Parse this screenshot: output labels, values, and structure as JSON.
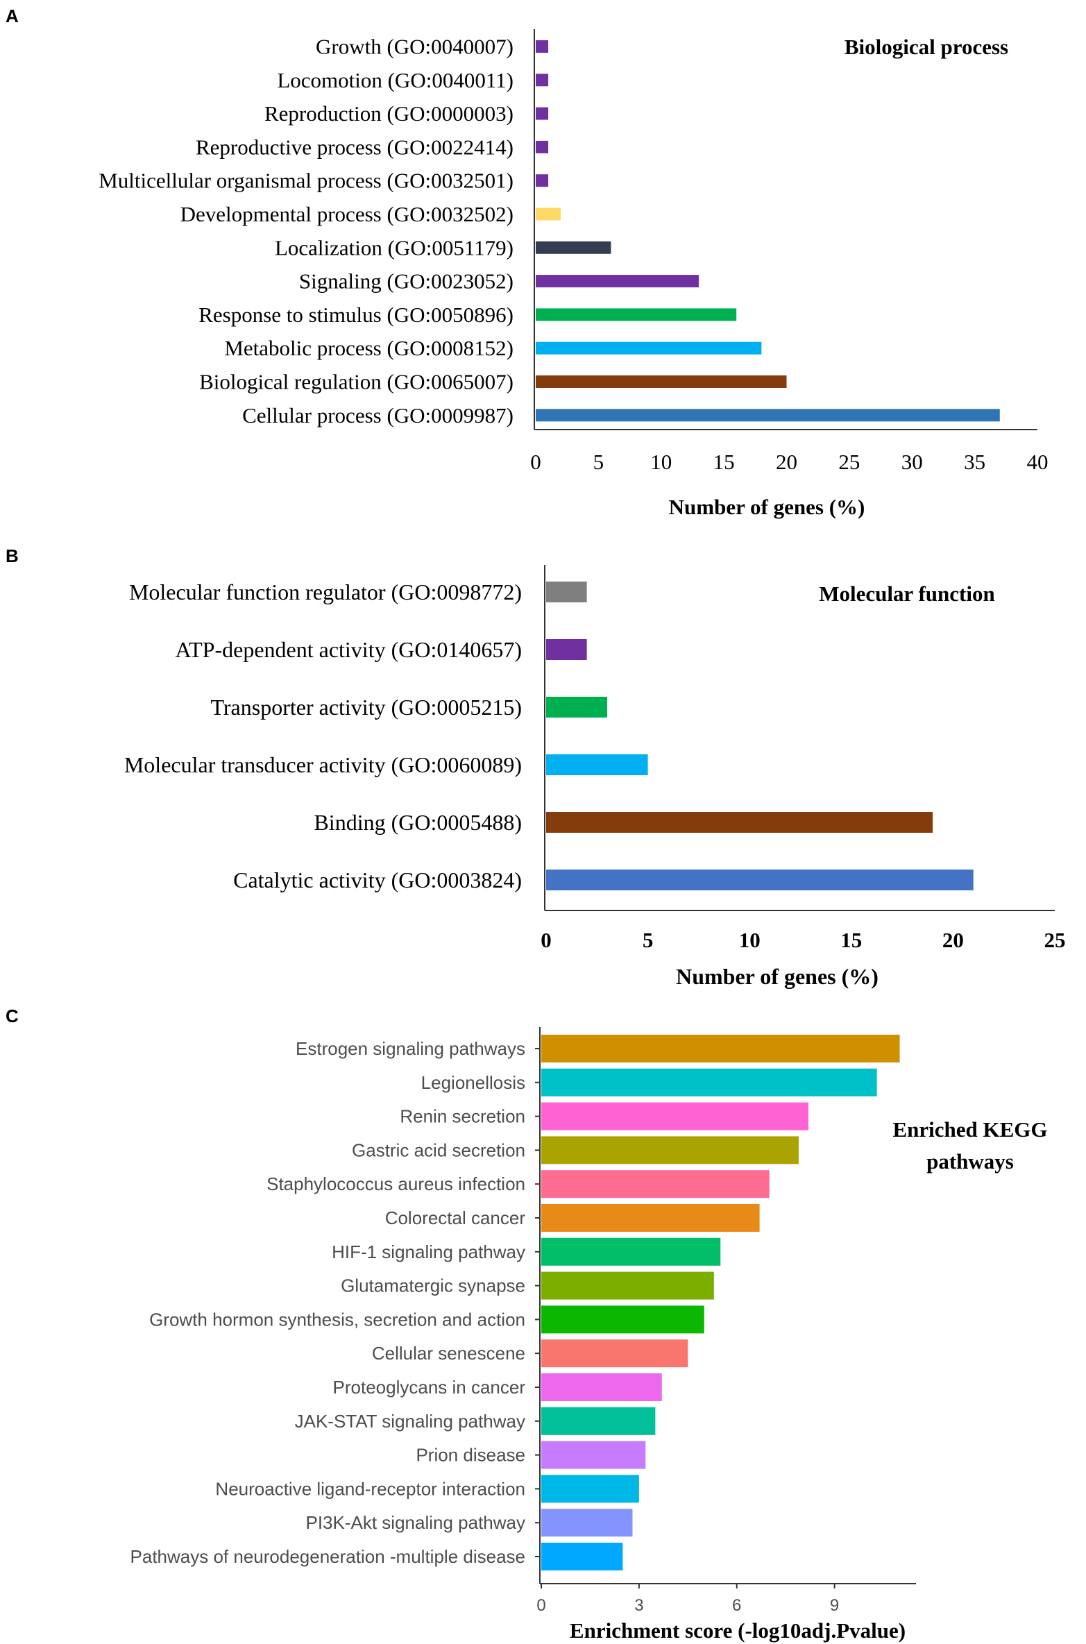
{
  "chart_data": [
    {
      "panel_letter": "A",
      "type": "bar",
      "orientation": "horizontal",
      "title": "Biological process",
      "xlabel": "Number of genes (%)",
      "ylabel": "",
      "xlim": [
        0,
        40
      ],
      "xticks": [
        "0",
        "5",
        "10",
        "15",
        "20",
        "25",
        "30",
        "35",
        "40"
      ],
      "categories": [
        "Growth (GO:0040007)",
        "Locomotion (GO:0040011)",
        "Reproduction (GO:0000003)",
        "Reproductive process (GO:0022414)",
        "Multicellular organismal process (GO:0032501)",
        "Developmental process (GO:0032502)",
        "Localization (GO:0051179)",
        "Signaling (GO:0023052)",
        "Response to stimulus (GO:0050896)",
        "Metabolic process (GO:0008152)",
        "Biological regulation (GO:0065007)",
        "Cellular process (GO:0009987)"
      ],
      "values": [
        1,
        1,
        1,
        1,
        1,
        2,
        6,
        13,
        16,
        18,
        20,
        37
      ],
      "colors": [
        "#7030a0",
        "#7030a0",
        "#7030a0",
        "#7030a0",
        "#7030a0",
        "#ffd966",
        "#333f50",
        "#7030a0",
        "#00b050",
        "#00b0f0",
        "#843c0c",
        "#2e75b6"
      ],
      "grid": false
    },
    {
      "panel_letter": "B",
      "type": "bar",
      "orientation": "horizontal",
      "title": "Molecular function",
      "xlabel": "Number of genes (%)",
      "ylabel": "",
      "xlim": [
        0,
        25
      ],
      "xticks": [
        "0",
        "5",
        "10",
        "15",
        "20",
        "25"
      ],
      "categories": [
        "Molecular function regulator (GO:0098772)",
        "ATP-dependent activity (GO:0140657)",
        "Transporter activity (GO:0005215)",
        "Molecular transducer activity (GO:0060089)",
        "Binding (GO:0005488)",
        "Catalytic activity (GO:0003824)"
      ],
      "values": [
        2,
        2,
        3,
        5,
        19,
        21
      ],
      "colors": [
        "#7f7f7f",
        "#7030a0",
        "#00b050",
        "#00b0f0",
        "#843c0c",
        "#4472c4"
      ],
      "grid": false
    },
    {
      "panel_letter": "C",
      "type": "bar",
      "orientation": "horizontal",
      "title": "Enriched KEGG pathways",
      "title_lines": [
        "Enriched KEGG",
        "pathways"
      ],
      "xlabel": "Enrichment score (-log10adj.Pvalue)",
      "ylabel": "",
      "xlim": [
        0,
        11.5
      ],
      "xticks": [
        "0",
        "3",
        "6",
        "9"
      ],
      "xtick_values": [
        0,
        3,
        6,
        9
      ],
      "categories": [
        "Estrogen signaling pathways",
        "Legionellosis",
        "Renin secretion",
        "Gastric acid secretion",
        "Staphylococcus aureus infection",
        "Colorectal cancer",
        "HIF-1 signaling pathway",
        "Glutamatergic synapse",
        "Growth hormon synthesis, secretion and action",
        "Cellular senescene",
        "Proteoglycans in cancer",
        "JAK-STAT signaling pathway",
        "Prion disease",
        "Neuroactive ligand-receptor interaction",
        "PI3K-Akt signaling pathway",
        "Pathways of neurodegeneration -multiple disease"
      ],
      "values": [
        11.0,
        10.3,
        8.2,
        7.9,
        7.0,
        6.7,
        5.5,
        5.3,
        5.0,
        4.5,
        3.7,
        3.5,
        3.2,
        3.0,
        2.8,
        2.5
      ],
      "colors": [
        "#cc9000",
        "#00c1c8",
        "#ff62d2",
        "#aba300",
        "#ff6c91",
        "#e88a17",
        "#00be67",
        "#7cae00",
        "#0cb702",
        "#f8766d",
        "#ed68ed",
        "#00c19a",
        "#c77cff",
        "#00b8e7",
        "#8494ff",
        "#00a9ff"
      ],
      "grid": false
    }
  ]
}
